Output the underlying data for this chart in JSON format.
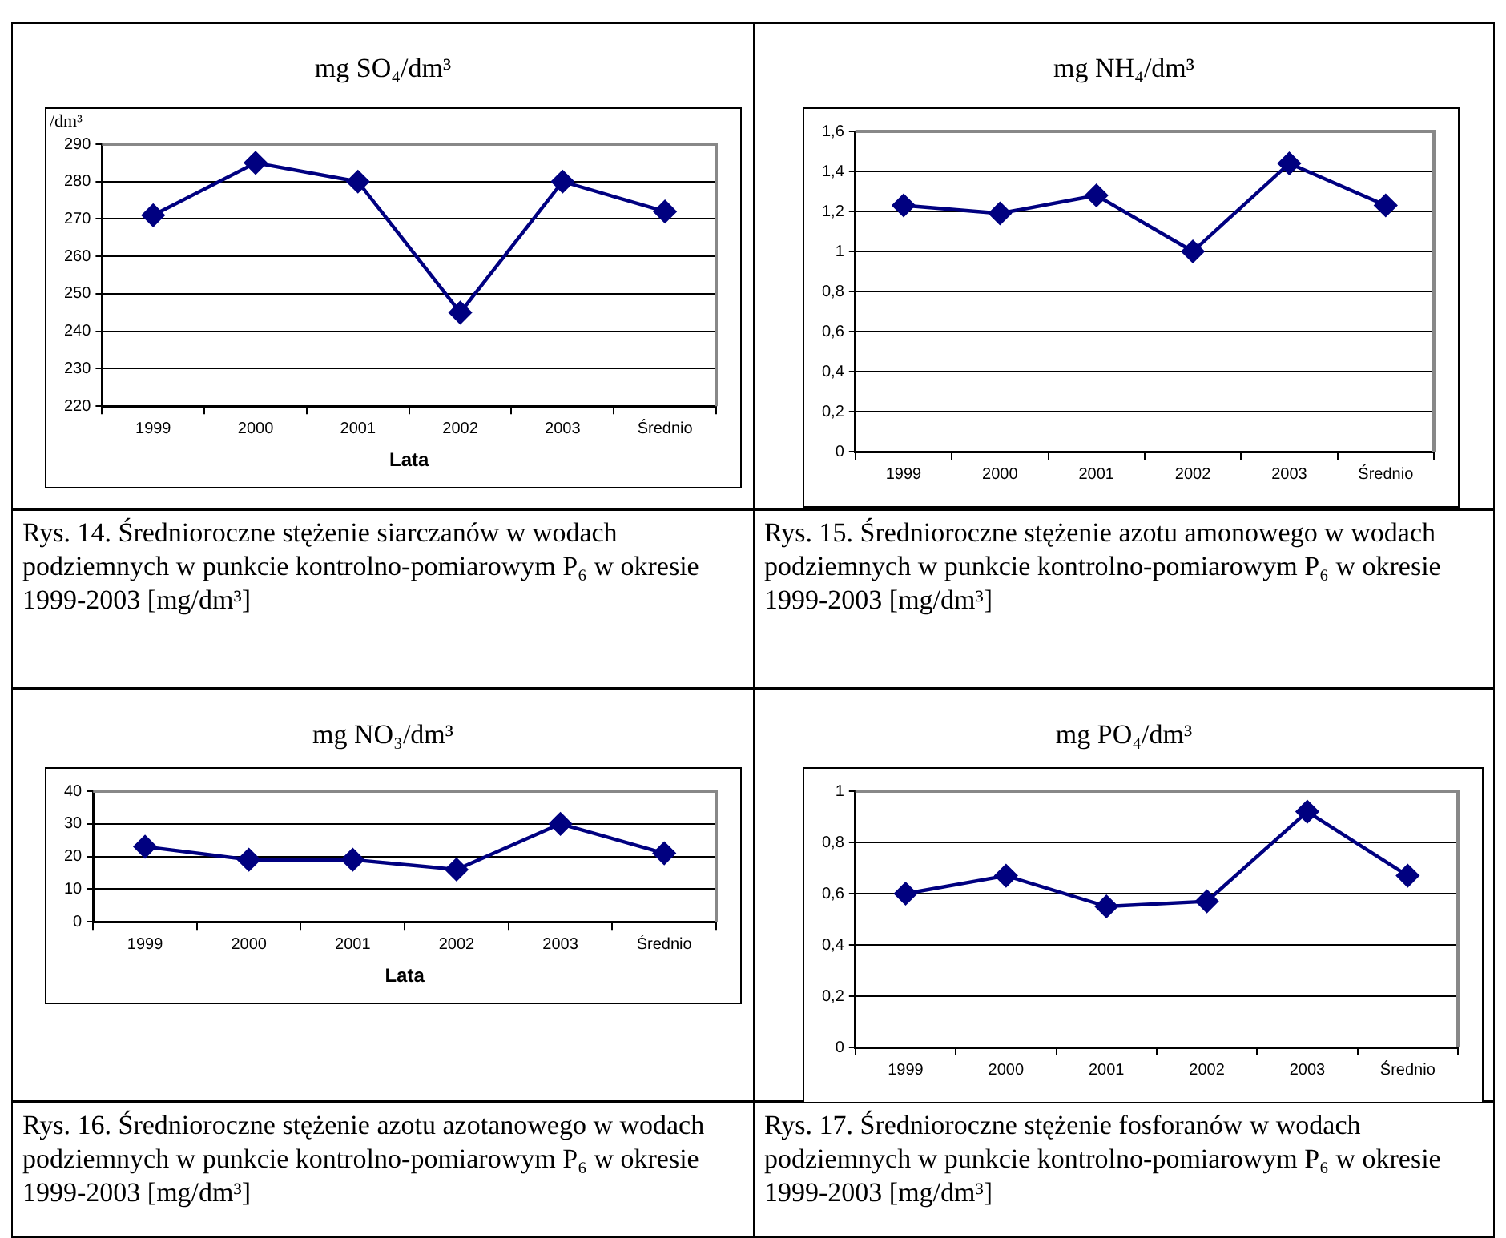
{
  "chart_data": [
    {
      "type": "line",
      "title": "mg SO₄/dm³",
      "ylabel": "/dm³",
      "xlabel": "Lata",
      "categories": [
        "1999",
        "2000",
        "2001",
        "2002",
        "2003",
        "Średnio"
      ],
      "series": [
        {
          "color": "#000080",
          "values": [
            271,
            285,
            280,
            245,
            280,
            272
          ]
        }
      ],
      "ylim": [
        220,
        290
      ],
      "yticks": [
        220,
        230,
        240,
        250,
        260,
        270,
        280,
        290
      ],
      "grid": "y",
      "legend": false,
      "marker": "diamond",
      "line_style": "solid",
      "annotations": [
        "Rys. 14. Średnioroczne stężenie siarczanów w wodach podziemnych w punkcie kontrolno-pomiarowym P₆ w okresie 1999-2003 [mg/dm³]"
      ]
    },
    {
      "type": "line",
      "title": "mg NH₄/dm³",
      "categories": [
        "1999",
        "2000",
        "2001",
        "2002",
        "2003",
        "Średnio"
      ],
      "series": [
        {
          "color": "#000080",
          "values": [
            1.23,
            1.19,
            1.28,
            1.0,
            1.44,
            1.23
          ]
        }
      ],
      "ylim": [
        0,
        1.6
      ],
      "yticks": [
        0,
        {
          "value": 0.2,
          "label": "0,2"
        },
        {
          "value": 0.4,
          "label": "0,4"
        },
        {
          "value": 0.6,
          "label": "0,6"
        },
        {
          "value": 0.8,
          "label": "0,8"
        },
        1,
        {
          "value": 1.2,
          "label": "1,2"
        },
        {
          "value": 1.4,
          "label": "1,4"
        },
        {
          "value": 1.6,
          "label": "1,6"
        }
      ],
      "grid": "y",
      "legend": false,
      "marker": "diamond",
      "line_style": "solid",
      "annotations": [
        "Rys. 15. Średnioroczne stężenie azotu amonowego w wodach podziemnych w punkcie kontrolno-pomiarowym P₆ w okresie 1999-2003 [mg/dm³]"
      ]
    },
    {
      "type": "line",
      "title": "mg NO₃/dm³",
      "xlabel": "Lata",
      "categories": [
        "1999",
        "2000",
        "2001",
        "2002",
        "2003",
        "Średnio"
      ],
      "series": [
        {
          "color": "#000080",
          "values": [
            23,
            19,
            19,
            16,
            30,
            21
          ]
        }
      ],
      "ylim": [
        0,
        40
      ],
      "yticks": [
        0,
        10,
        20,
        30,
        40
      ],
      "grid": "y",
      "legend": false,
      "marker": "diamond",
      "line_style": "solid",
      "annotations": [
        "Rys. 16. Średnioroczne stężenie azotu azotanowego w wodach podziemnych w punkcie kontrolno-pomiarowym P₆ w okresie 1999-2003 [mg/dm³]"
      ]
    },
    {
      "type": "line",
      "title": "mg PO₄/dm³",
      "categories": [
        "1999",
        "2000",
        "2001",
        "2002",
        "2003",
        "Średnio"
      ],
      "series": [
        {
          "color": "#000080",
          "values": [
            0.6,
            0.67,
            0.55,
            0.57,
            0.92,
            0.67
          ]
        }
      ],
      "ylim": [
        0,
        1
      ],
      "yticks": [
        0,
        {
          "value": 0.2,
          "label": "0,2"
        },
        {
          "value": 0.4,
          "label": "0,4"
        },
        {
          "value": 0.6,
          "label": "0,6"
        },
        {
          "value": 0.8,
          "label": "0,8"
        },
        1
      ],
      "grid": "y",
      "legend": false,
      "marker": "diamond",
      "line_style": "solid",
      "annotations": [
        "Rys. 17. Średnioroczne stężenie fosforanów w wodach podziemnych w punkcie kontrolno-pomiarowym P₆ w okresie 1999-2003 [mg/dm³]"
      ]
    }
  ]
}
